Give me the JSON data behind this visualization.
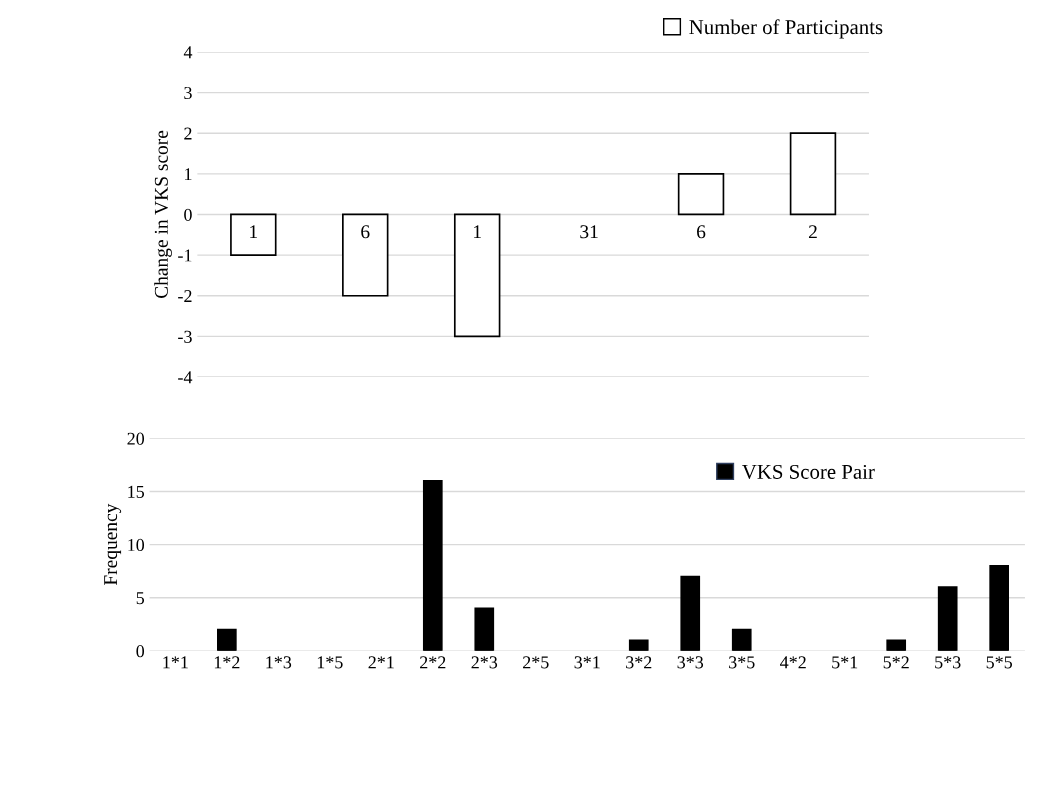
{
  "chart_data": [
    {
      "type": "bar",
      "ylabel": "Change in VKS score",
      "categories": [
        null,
        null,
        null,
        null,
        null,
        null
      ],
      "series": [
        {
          "name": "Number of Participants",
          "color": "#ffffff",
          "values": [
            -1,
            -2,
            -3,
            0,
            1,
            2
          ]
        }
      ],
      "annotations": [
        "1",
        "6",
        "1",
        "31",
        "6",
        "2"
      ],
      "ylim": [
        -4,
        4
      ],
      "yticks": [
        -4,
        -3,
        -2,
        -1,
        0,
        1,
        2,
        3,
        4
      ],
      "grid": "y",
      "legend": "top right"
    },
    {
      "type": "bar",
      "ylabel": "Frequency",
      "categories": [
        "1*1",
        "1*2",
        "1*3",
        "1*5",
        "2*1",
        "2*2",
        "2*3",
        "2*5",
        "3*1",
        "3*2",
        "3*3",
        "3*5",
        "4*2",
        "5*1",
        "5*2",
        "5*3",
        "5*5"
      ],
      "series": [
        {
          "name": "VKS Score Pair",
          "color": "#000000",
          "values": [
            0,
            2,
            0,
            0,
            0,
            16,
            4,
            0,
            0,
            1,
            7,
            2,
            0,
            0,
            1,
            6,
            8
          ]
        }
      ],
      "ylim": [
        0,
        20
      ],
      "yticks": [
        0,
        5,
        10,
        15,
        20
      ],
      "grid": "y",
      "legend": "top right"
    }
  ]
}
